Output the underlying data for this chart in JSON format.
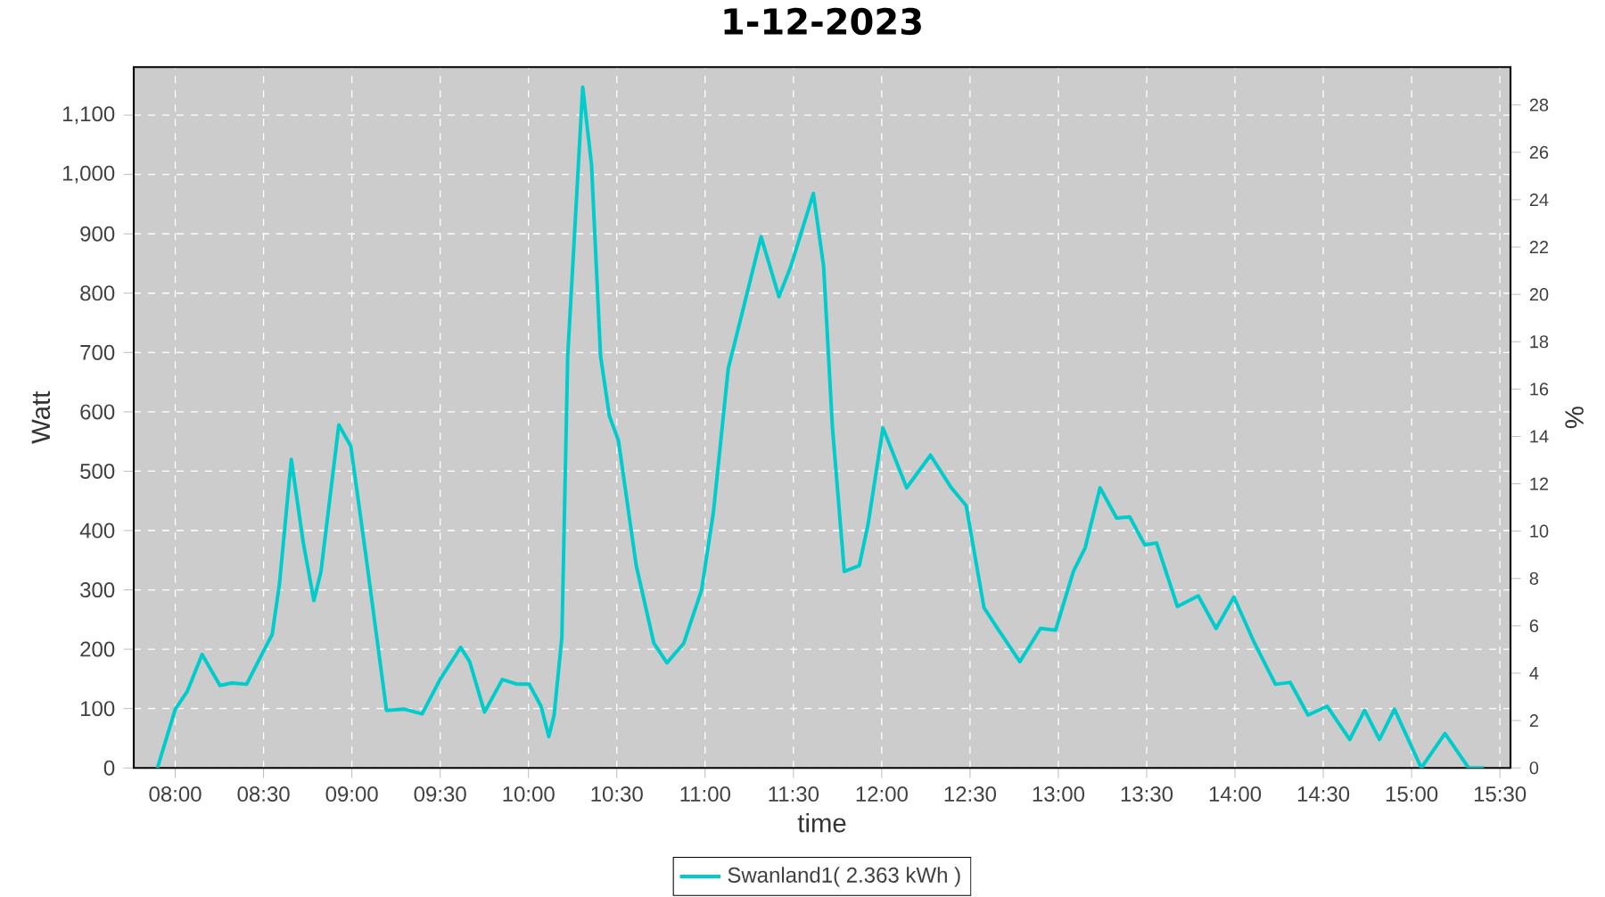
{
  "chart_data": {
    "type": "line",
    "title": "1-12-2023",
    "xlabel": "time",
    "ylabel": "Watt",
    "y2label": "%",
    "x": [
      7.899,
      8.0,
      8.068,
      8.152,
      8.253,
      8.32,
      8.404,
      8.505,
      8.549,
      8.59,
      8.657,
      8.724,
      8.785,
      8.825,
      8.926,
      8.994,
      9.078,
      9.196,
      9.297,
      9.398,
      9.499,
      9.616,
      9.667,
      9.751,
      9.852,
      9.936,
      10.004,
      10.071,
      10.115,
      10.145,
      10.189,
      10.222,
      10.307,
      10.357,
      10.408,
      10.458,
      10.509,
      10.61,
      10.71,
      10.784,
      10.879,
      10.98,
      11.047,
      11.131,
      11.199,
      11.317,
      11.418,
      11.485,
      11.613,
      11.671,
      11.721,
      11.788,
      11.873,
      11.923,
      12.007,
      12.141,
      12.276,
      12.394,
      12.478,
      12.579,
      12.656,
      12.782,
      12.899,
      12.984,
      13.085,
      13.152,
      13.236,
      13.33,
      13.404,
      13.489,
      13.556,
      13.674,
      13.792,
      13.893,
      13.994,
      14.111,
      14.229,
      14.313,
      14.414,
      14.522,
      14.65,
      14.734,
      14.818,
      14.903,
      15.055,
      15.189,
      15.323,
      15.41
    ],
    "series": [
      {
        "name": "Swanland1( 2.363 kWh )",
        "color": "#00cccc",
        "values": [
          0,
          99,
          129,
          191,
          139,
          143,
          141,
          200,
          225,
          310,
          520,
          381,
          282,
          331,
          578,
          542,
          361,
          97,
          99,
          91,
          149,
          203,
          179,
          94,
          149,
          141,
          141,
          104,
          53,
          89,
          220,
          694,
          1147,
          1016,
          694,
          593,
          552,
          341,
          210,
          177,
          210,
          300,
          431,
          673,
          754,
          895,
          794,
          845,
          968,
          845,
          573,
          331,
          341,
          411,
          573,
          472,
          527,
          472,
          442,
          270,
          235,
          179,
          235,
          232,
          331,
          371,
          472,
          421,
          423,
          376,
          379,
          272,
          290,
          235,
          288,
          210,
          141,
          144,
          89,
          104,
          48,
          97,
          48,
          99,
          0,
          58,
          0,
          0
        ]
      }
    ],
    "xlim": [
      7.765,
      15.56
    ],
    "xticks": [
      {
        "value": 8,
        "label": "08:00"
      },
      {
        "value": 8.5,
        "label": "08:30"
      },
      {
        "value": 9,
        "label": "09:00"
      },
      {
        "value": 9.5,
        "label": "09:30"
      },
      {
        "value": 10,
        "label": "10:00"
      },
      {
        "value": 10.5,
        "label": "10:30"
      },
      {
        "value": 11,
        "label": "11:00"
      },
      {
        "value": 11.5,
        "label": "11:30"
      },
      {
        "value": 12,
        "label": "12:00"
      },
      {
        "value": 12.5,
        "label": "12:30"
      },
      {
        "value": 13,
        "label": "13:00"
      },
      {
        "value": 13.5,
        "label": "13:30"
      },
      {
        "value": 14,
        "label": "14:00"
      },
      {
        "value": 14.5,
        "label": "14:30"
      },
      {
        "value": 15,
        "label": "15:00"
      },
      {
        "value": 15.5,
        "label": "15:30"
      }
    ],
    "ylim": [
      0,
      1181
    ],
    "yticks": [
      0,
      100,
      200,
      300,
      400,
      500,
      600,
      700,
      800,
      900,
      {
        "value": 1000,
        "label": "1,000"
      },
      {
        "value": 1100,
        "label": "1,100"
      }
    ],
    "y2lim": [
      0,
      29.6
    ],
    "y2ticks": [
      0,
      2,
      4,
      6,
      8,
      10,
      12,
      14,
      16,
      18,
      20,
      22,
      24,
      26,
      28
    ],
    "grid": true,
    "legend": "bottom"
  }
}
